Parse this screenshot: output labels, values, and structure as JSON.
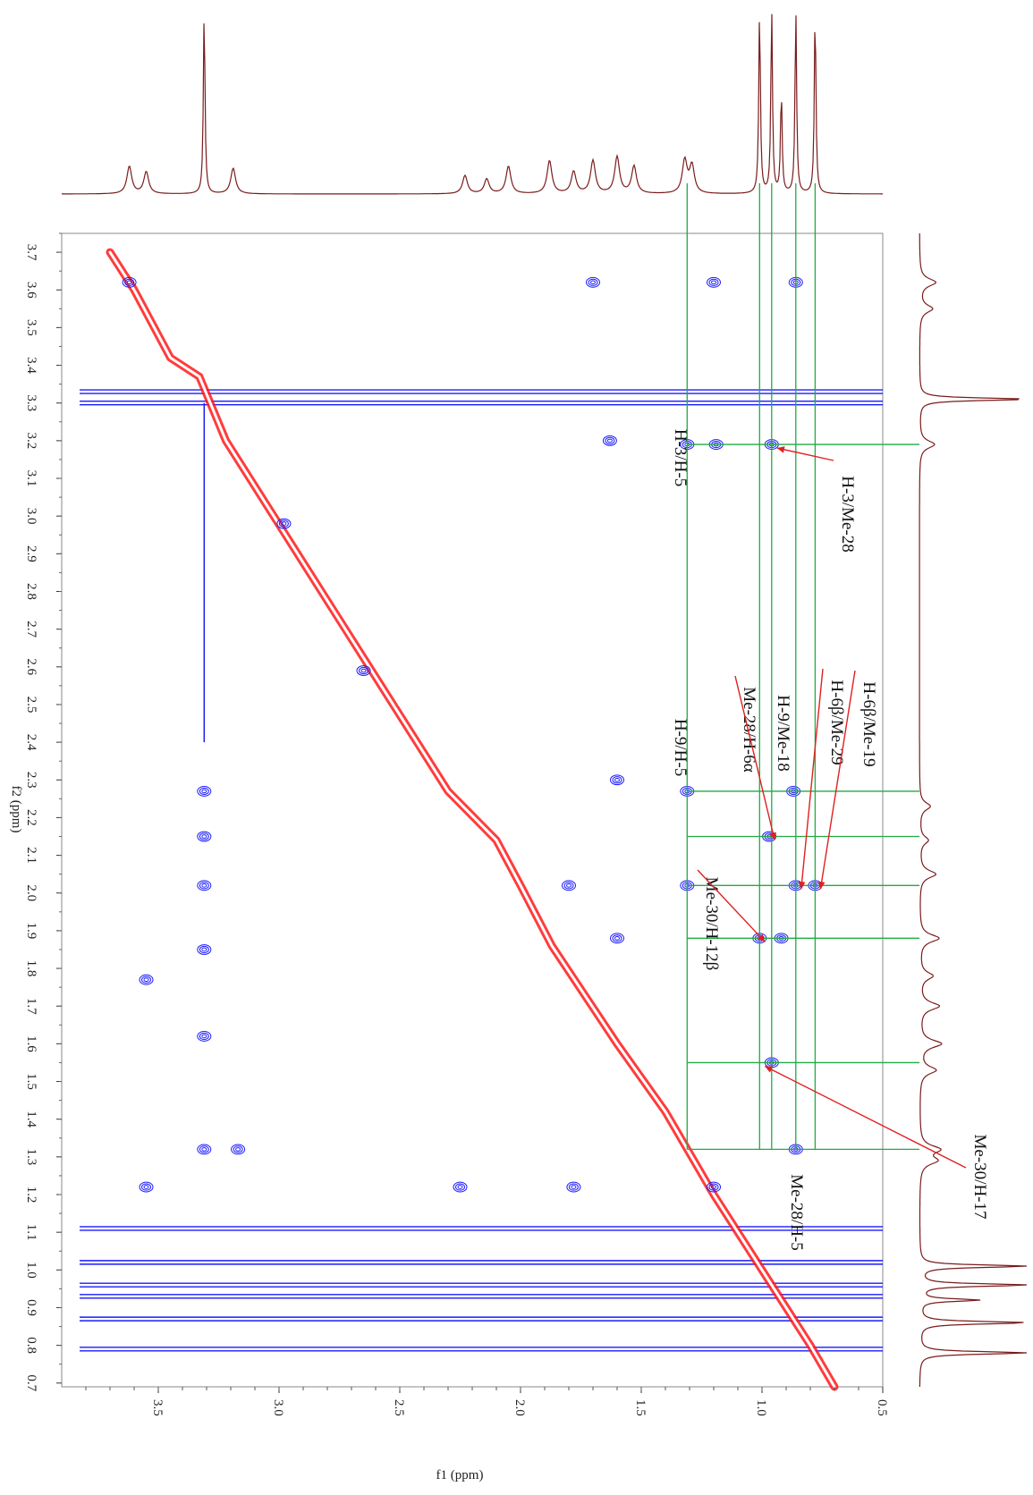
{
  "chart_data": {
    "type": "heatmap",
    "subtype": "2D NOESY contour spectrum with 1D projections",
    "xlabel": "f1 (ppm)",
    "ylabel": "f2 (ppm)",
    "xlim": [
      3.9,
      0.5
    ],
    "ylim": [
      3.75,
      0.69
    ],
    "x_ticks": [
      "3.5",
      "3.0",
      "2.5",
      "2.0",
      "1.5",
      "1.0",
      "0.5"
    ],
    "y_ticks": [
      "3.7",
      "3.6",
      "3.5",
      "3.4",
      "3.3",
      "3.2",
      "3.1",
      "3.0",
      "2.9",
      "2.8",
      "2.7",
      "2.6",
      "2.5",
      "2.4",
      "2.3",
      "2.2",
      "2.1",
      "2.0",
      "1.9",
      "1.8",
      "1.7",
      "1.6",
      "1.5",
      "1.4",
      "1.3",
      "1.2",
      "1.1",
      "1.0",
      "0.9",
      "0.8",
      "0.7"
    ],
    "grid": false,
    "colors": {
      "positive": "#1a1aff",
      "negative": "#ff1a1a",
      "projection": "#7a1c1c",
      "guide": "#22aa44",
      "arrow": "#e02020"
    },
    "projection_peaks_ppm": [
      3.62,
      3.55,
      3.31,
      3.19,
      2.23,
      2.14,
      2.05,
      1.88,
      1.78,
      1.7,
      1.6,
      1.53,
      1.32,
      1.29,
      1.01,
      0.96,
      0.92,
      0.86,
      0.78
    ],
    "diagonal_ppm": [
      [
        3.7,
        3.7
      ],
      [
        3.6,
        3.6
      ],
      [
        3.45,
        3.42
      ],
      [
        3.33,
        3.37
      ],
      [
        3.22,
        3.2
      ],
      [
        2.3,
        2.27
      ],
      [
        2.1,
        2.14
      ],
      [
        2.0,
        2.02
      ],
      [
        1.87,
        1.86
      ],
      [
        1.6,
        1.6
      ],
      [
        1.4,
        1.42
      ],
      [
        1.2,
        1.2
      ],
      [
        1.0,
        1.0
      ],
      [
        0.8,
        0.8
      ],
      [
        0.7,
        0.69
      ]
    ],
    "cross_peaks": [
      {
        "f1": 3.31,
        "f2": 2.27
      },
      {
        "f1": 3.31,
        "f2": 2.15
      },
      {
        "f1": 3.31,
        "f2": 2.02
      },
      {
        "f1": 3.31,
        "f2": 1.85
      },
      {
        "f1": 3.31,
        "f2": 1.62
      },
      {
        "f1": 3.31,
        "f2": 1.32
      },
      {
        "f1": 3.55,
        "f2": 1.77
      },
      {
        "f1": 3.55,
        "f2": 1.22
      },
      {
        "f1": 3.17,
        "f2": 1.32
      },
      {
        "f1": 1.31,
        "f2": 3.19
      },
      {
        "f1": 1.19,
        "f2": 3.19
      },
      {
        "f1": 0.96,
        "f2": 3.19
      },
      {
        "f1": 1.31,
        "f2": 2.27
      },
      {
        "f1": 0.87,
        "f2": 2.27
      },
      {
        "f1": 0.97,
        "f2": 2.15
      },
      {
        "f1": 1.31,
        "f2": 2.02
      },
      {
        "f1": 0.86,
        "f2": 2.02
      },
      {
        "f1": 0.78,
        "f2": 2.02
      },
      {
        "f1": 1.01,
        "f2": 1.88
      },
      {
        "f1": 0.92,
        "f2": 1.88
      },
      {
        "f1": 1.63,
        "f2": 3.2
      },
      {
        "f1": 1.7,
        "f2": 3.62
      },
      {
        "f1": 1.2,
        "f2": 3.62
      },
      {
        "f1": 0.86,
        "f2": 3.62
      },
      {
        "f1": 1.6,
        "f2": 2.3
      },
      {
        "f1": 1.8,
        "f2": 2.02
      },
      {
        "f1": 1.6,
        "f2": 1.88
      },
      {
        "f1": 1.2,
        "f2": 1.22
      },
      {
        "f1": 1.78,
        "f2": 1.22
      },
      {
        "f1": 2.25,
        "f2": 1.22
      },
      {
        "f1": 2.65,
        "f2": 2.59
      },
      {
        "f1": 2.98,
        "f2": 2.98
      },
      {
        "f1": 3.62,
        "f2": 3.62
      },
      {
        "f1": 0.96,
        "f2": 1.55
      },
      {
        "f1": 0.86,
        "f2": 1.32
      }
    ],
    "horizontal_ridges_f2": [
      3.33,
      3.3,
      1.11,
      1.02,
      0.96,
      0.93,
      0.87,
      0.79
    ],
    "annotations": [
      {
        "label": "H-3/H-5",
        "f1": 1.31,
        "f2": 3.19
      },
      {
        "label": "H-3/Me-28",
        "f1": 0.96,
        "f2": 3.19
      },
      {
        "label": "H-9/H-5",
        "f1": 1.31,
        "f2": 2.27
      },
      {
        "label": "Me-28/H-6α",
        "f1": 0.97,
        "f2": 2.15
      },
      {
        "label": "H-9/Me-18",
        "f1": 0.87,
        "f2": 2.27
      },
      {
        "label": "H-6β/Me-29",
        "f1": 0.86,
        "f2": 2.02
      },
      {
        "label": "H-6β/Me-19",
        "f1": 0.78,
        "f2": 2.02
      },
      {
        "label": "Me-30/H-12β",
        "f1": 1.01,
        "f2": 1.88
      },
      {
        "label": "Me-30/H-17",
        "f1": 1.01,
        "f2": 1.55
      },
      {
        "label": "Me-28/H-5",
        "f1": 0.96,
        "f2": 1.32
      }
    ]
  }
}
